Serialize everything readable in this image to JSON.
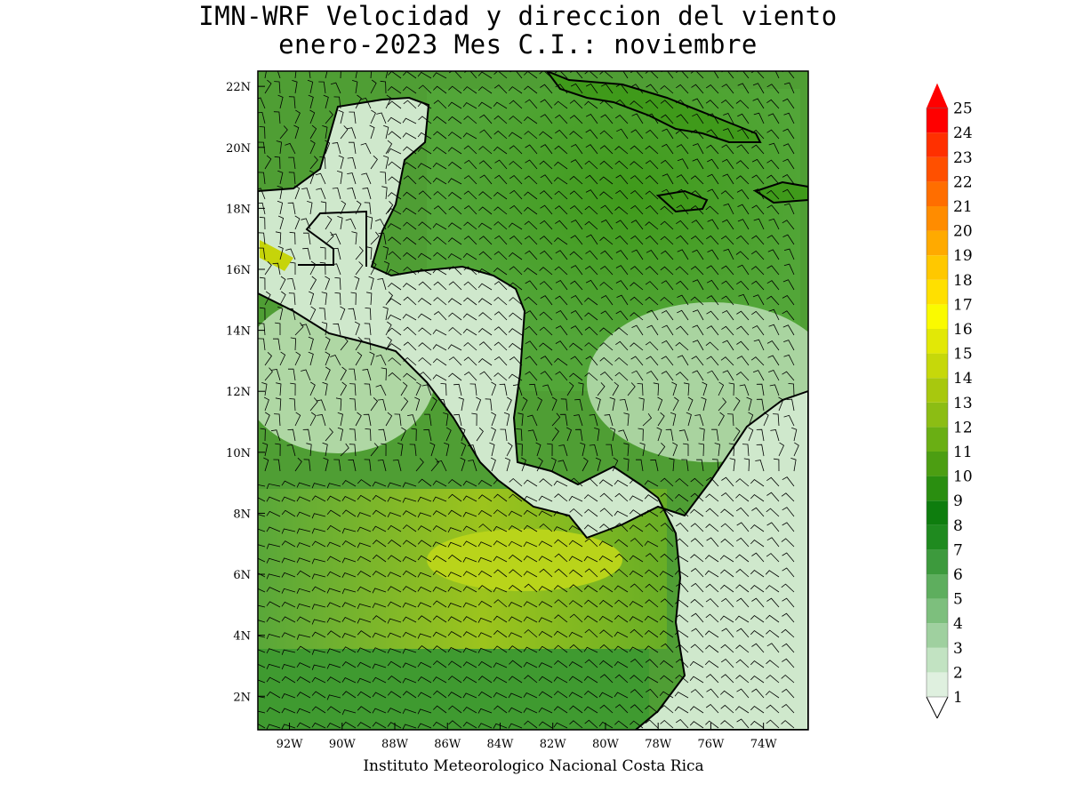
{
  "title": {
    "line1": "IMN-WRF Velocidad y direccion del viento",
    "line2": "enero-2023 Mes C.I.: noviembre"
  },
  "credit": "Instituto Meteorologico Nacional Costa Rica",
  "map": {
    "lon_range": [
      -93.2,
      -72.3
    ],
    "lat_range": [
      0.9,
      22.5
    ],
    "lon_ticks": [
      {
        "value": -92,
        "label": "92W"
      },
      {
        "value": -90,
        "label": "90W"
      },
      {
        "value": -88,
        "label": "88W"
      },
      {
        "value": -86,
        "label": "86W"
      },
      {
        "value": -84,
        "label": "84W"
      },
      {
        "value": -82,
        "label": "82W"
      },
      {
        "value": -80,
        "label": "80W"
      },
      {
        "value": -78,
        "label": "78W"
      },
      {
        "value": -76,
        "label": "76W"
      },
      {
        "value": -74,
        "label": "74W"
      }
    ],
    "lat_ticks": [
      {
        "value": 2,
        "label": "2N"
      },
      {
        "value": 4,
        "label": "4N"
      },
      {
        "value": 6,
        "label": "6N"
      },
      {
        "value": 8,
        "label": "8N"
      },
      {
        "value": 10,
        "label": "10N"
      },
      {
        "value": 12,
        "label": "12N"
      },
      {
        "value": 14,
        "label": "14N"
      },
      {
        "value": 16,
        "label": "16N"
      },
      {
        "value": 18,
        "label": "18N"
      },
      {
        "value": 20,
        "label": "20N"
      },
      {
        "value": 22,
        "label": "22N"
      }
    ],
    "field_colors": {
      "sea_wind": "#5aa83a",
      "strong_band": "#9cc820",
      "calm": "#d8eed8",
      "land": "#cfe8cc",
      "coast": "#000000"
    }
  },
  "colorbar": {
    "levels": [
      {
        "label": "1",
        "color": "#ffffff"
      },
      {
        "label": "2",
        "color": "#dff0df"
      },
      {
        "label": "3",
        "color": "#c2e3c2"
      },
      {
        "label": "4",
        "color": "#9fd09f"
      },
      {
        "label": "5",
        "color": "#7dbf7d"
      },
      {
        "label": "6",
        "color": "#5eae5e"
      },
      {
        "label": "7",
        "color": "#3d9a3d"
      },
      {
        "label": "8",
        "color": "#1f8a1f"
      },
      {
        "label": "9",
        "color": "#0e7d0e"
      },
      {
        "label": "10",
        "color": "#2a8e10"
      },
      {
        "label": "11",
        "color": "#4c9e12"
      },
      {
        "label": "12",
        "color": "#6aaf14"
      },
      {
        "label": "13",
        "color": "#8cbd14"
      },
      {
        "label": "14",
        "color": "#a8c80e"
      },
      {
        "label": "15",
        "color": "#c6d80a"
      },
      {
        "label": "16",
        "color": "#e2e806"
      },
      {
        "label": "17",
        "color": "#fafa00"
      },
      {
        "label": "18",
        "color": "#ffe000"
      },
      {
        "label": "19",
        "color": "#ffc800"
      },
      {
        "label": "20",
        "color": "#ffaa00"
      },
      {
        "label": "21",
        "color": "#ff8c00"
      },
      {
        "label": "22",
        "color": "#ff6e00"
      },
      {
        "label": "23",
        "color": "#ff5000"
      },
      {
        "label": "24",
        "color": "#ff3000"
      },
      {
        "label": "25",
        "color": "#ff0000"
      }
    ]
  }
}
